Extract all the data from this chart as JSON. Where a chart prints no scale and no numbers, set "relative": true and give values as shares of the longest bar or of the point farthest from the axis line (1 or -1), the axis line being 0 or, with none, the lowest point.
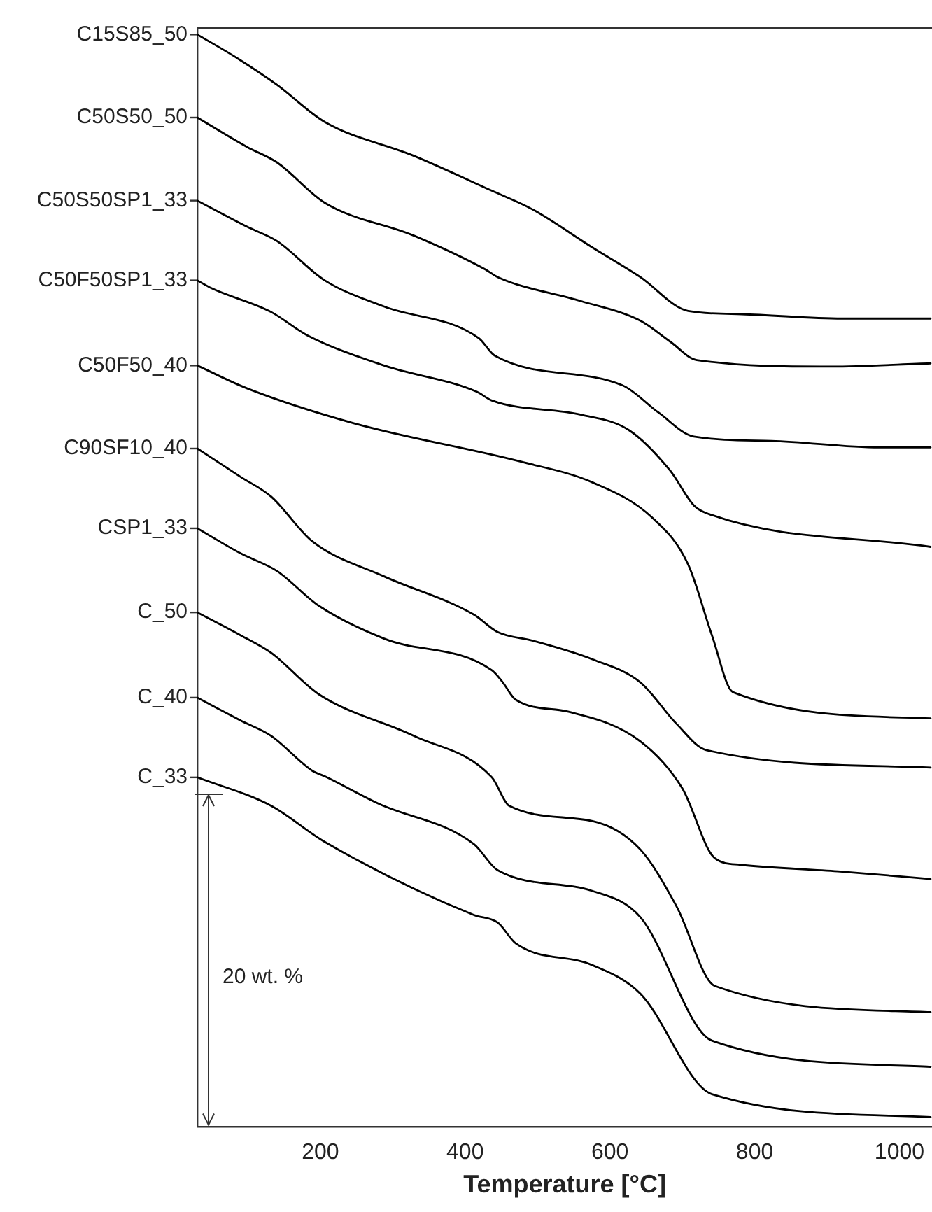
{
  "chart_data": {
    "type": "line",
    "xlabel": "Temperature [°C]",
    "relative": true,
    "xlim": [
      30,
      1045
    ],
    "xticks": [
      200,
      400,
      600,
      800,
      1000
    ],
    "tick_labels": "x",
    "grid": false,
    "legend": false,
    "marker": "none",
    "line_style": "solid",
    "annotations": [
      "20 wt. %"
    ],
    "series": [
      {
        "name": "C15S85_50",
        "color": "#000000",
        "x": [
          30,
          86,
          140,
          206,
          329,
          437,
          493,
          576,
          642,
          708,
          782,
          921,
          1043
        ],
        "values": [
          1.0,
          0.978,
          0.954,
          0.92,
          0.889,
          0.857,
          0.84,
          0.805,
          0.778,
          0.747,
          0.744,
          0.74,
          0.74
        ]
      },
      {
        "name": "C50S50_50",
        "color": "#000000",
        "x": [
          30,
          99,
          140,
          206,
          329,
          428,
          445,
          560,
          642,
          683,
          720,
          906,
          1043
        ],
        "values": [
          0.924,
          0.897,
          0.883,
          0.846,
          0.816,
          0.785,
          0.778,
          0.756,
          0.738,
          0.719,
          0.702,
          0.696,
          0.699
        ]
      },
      {
        "name": "C50S50SP1_33",
        "color": "#000000",
        "x": [
          30,
          99,
          140,
          206,
          288,
          419,
          441,
          617,
          667,
          716,
          823,
          972,
          1043
        ],
        "values": [
          0.848,
          0.824,
          0.811,
          0.775,
          0.751,
          0.722,
          0.706,
          0.679,
          0.654,
          0.632,
          0.628,
          0.622,
          0.622
        ]
      },
      {
        "name": "C50F50SP1_33",
        "color": "#000000",
        "x": [
          30,
          49,
          132,
          181,
          288,
          416,
          437,
          560,
          626,
          683,
          716,
          737,
          1043
        ],
        "values": [
          0.775,
          0.768,
          0.746,
          0.725,
          0.697,
          0.673,
          0.665,
          0.652,
          0.638,
          0.601,
          0.569,
          0.561,
          0.531
        ]
      },
      {
        "name": "C50F50_40",
        "color": "#000000",
        "x": [
          30,
          99,
          247,
          477,
          576,
          658,
          708,
          741,
          770,
          1043
        ],
        "values": [
          0.697,
          0.676,
          0.644,
          0.609,
          0.59,
          0.558,
          0.515,
          0.45,
          0.398,
          0.374
        ]
      },
      {
        "name": "C90SF10_40",
        "color": "#000000",
        "x": [
          30,
          90,
          132,
          189,
          288,
          412,
          445,
          494,
          576,
          642,
          692,
          733,
          1043
        ],
        "values": [
          0.621,
          0.595,
          0.577,
          0.536,
          0.504,
          0.469,
          0.453,
          0.445,
          0.428,
          0.407,
          0.369,
          0.345,
          0.329
        ]
      },
      {
        "name": "CSP1_33",
        "color": "#000000",
        "x": [
          30,
          90,
          140,
          198,
          288,
          437,
          452,
          470,
          543,
          642,
          700,
          745,
          780,
          915,
          1043
        ],
        "values": [
          0.548,
          0.525,
          0.509,
          0.477,
          0.447,
          0.418,
          0.407,
          0.391,
          0.38,
          0.353,
          0.31,
          0.246,
          0.24,
          0.234,
          0.227
        ]
      },
      {
        "name": "C_50",
        "color": "#000000",
        "x": [
          30,
          90,
          132,
          198,
          329,
          437,
          461,
          576,
          642,
          692,
          745,
          1043
        ],
        "values": [
          0.471,
          0.45,
          0.434,
          0.396,
          0.358,
          0.32,
          0.294,
          0.28,
          0.254,
          0.202,
          0.129,
          0.105
        ]
      },
      {
        "name": "C_40",
        "color": "#000000",
        "x": [
          30,
          90,
          132,
          189,
          206,
          280,
          412,
          445,
          576,
          642,
          741,
          1043
        ],
        "values": [
          0.393,
          0.372,
          0.358,
          0.326,
          0.321,
          0.296,
          0.259,
          0.235,
          0.216,
          0.192,
          0.079,
          0.055
        ]
      },
      {
        "name": "C_33",
        "color": "#000000",
        "x": [
          30,
          132,
          206,
          412,
          445,
          470,
          576,
          642,
          741,
          1043
        ],
        "values": [
          0.32,
          0.294,
          0.261,
          0.194,
          0.187,
          0.168,
          0.148,
          0.122,
          0.03,
          0.009
        ]
      }
    ]
  }
}
